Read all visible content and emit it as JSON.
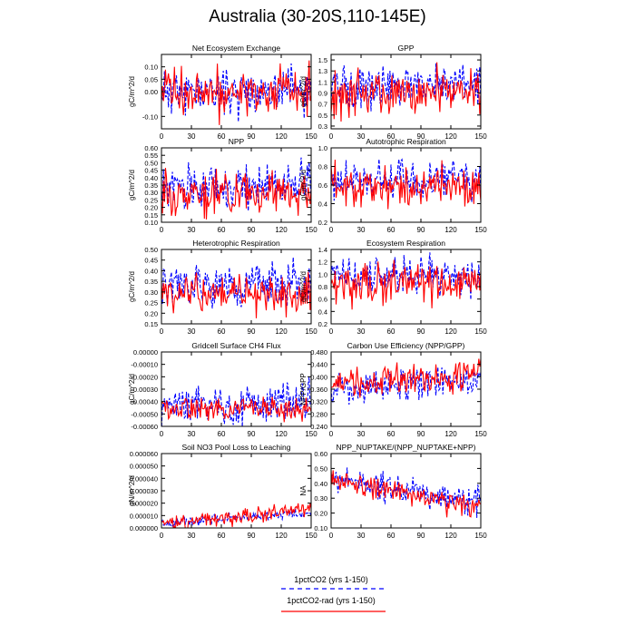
{
  "title": "Australia (30-20S,110-145E)",
  "legend": [
    {
      "label": "1pctCO2 (yrs 1-150)",
      "color": "#0000ff",
      "dash": "5,4"
    },
    {
      "label": "1pctCO2-rad (yrs 1-150)",
      "color": "#ff0000",
      "dash": ""
    }
  ],
  "chart_data": [
    {
      "type": "line",
      "title": "Net Ecosystem Exchange",
      "ylabel": "gC/m^2/d",
      "xlim": [
        0,
        150
      ],
      "ylim": [
        -0.15,
        0.15
      ],
      "xticks": [
        0,
        30,
        60,
        90,
        120,
        150
      ],
      "yticks": [
        -0.1,
        0.0,
        0.05,
        0.1
      ],
      "ytick_labels": [
        "-0.10",
        "0.00",
        "0.05",
        "0.10"
      ],
      "series": [
        {
          "color": "#0000ff",
          "base": 0.0,
          "amp": 0.045,
          "trend": 0.0,
          "seed": 11
        },
        {
          "color": "#ff0000",
          "base": 0.0,
          "amp": 0.05,
          "trend": 0.0,
          "seed": 12
        }
      ]
    },
    {
      "type": "line",
      "title": "GPP",
      "ylabel": "gC/m^2/d",
      "xlim": [
        0,
        150
      ],
      "ylim": [
        0.25,
        1.6
      ],
      "xticks": [
        0,
        30,
        60,
        90,
        120,
        150
      ],
      "yticks": [
        0.3,
        0.5,
        0.7,
        0.9,
        1.1,
        1.3,
        1.5
      ],
      "ytick_labels": [
        "0.3",
        "0.5",
        "0.7",
        "0.9",
        "1.1",
        "1.3",
        "1.5"
      ],
      "series": [
        {
          "color": "#0000ff",
          "base": 1.0,
          "amp": 0.18,
          "trend": 0.05,
          "seed": 21
        },
        {
          "color": "#ff0000",
          "base": 0.9,
          "amp": 0.2,
          "trend": 0.0,
          "seed": 22
        }
      ]
    },
    {
      "type": "line",
      "title": "NPP",
      "ylabel": "gC/m^2/d",
      "xlim": [
        0,
        150
      ],
      "ylim": [
        0.1,
        0.6
      ],
      "xticks": [
        0,
        30,
        60,
        90,
        120,
        150
      ],
      "yticks": [
        0.1,
        0.15,
        0.2,
        0.25,
        0.3,
        0.35,
        0.4,
        0.45,
        0.5,
        0.55,
        0.6
      ],
      "ytick_labels": [
        "0.10",
        "0.15",
        "0.20",
        "0.25",
        "0.30",
        "0.35",
        "0.40",
        "0.45",
        "0.50",
        "0.55",
        "0.60"
      ],
      "series": [
        {
          "color": "#0000ff",
          "base": 0.33,
          "amp": 0.07,
          "trend": 0.02,
          "seed": 31
        },
        {
          "color": "#ff0000",
          "base": 0.3,
          "amp": 0.07,
          "trend": 0.0,
          "seed": 32
        }
      ]
    },
    {
      "type": "line",
      "title": "Autotrophic Respiration",
      "ylabel": "gC/m^2/d",
      "xlim": [
        0,
        150
      ],
      "ylim": [
        0.2,
        1.0
      ],
      "xticks": [
        0,
        30,
        60,
        90,
        120,
        150
      ],
      "yticks": [
        0.2,
        0.4,
        0.6,
        0.8,
        1.0
      ],
      "ytick_labels": [
        "0.2",
        "0.4",
        "0.6",
        "0.8",
        "1.0"
      ],
      "series": [
        {
          "color": "#0000ff",
          "base": 0.63,
          "amp": 0.11,
          "trend": 0.02,
          "seed": 41
        },
        {
          "color": "#ff0000",
          "base": 0.58,
          "amp": 0.11,
          "trend": 0.0,
          "seed": 42
        }
      ]
    },
    {
      "type": "line",
      "title": "Heterotrophic Respiration",
      "ylabel": "gC/m^2/d",
      "xlim": [
        0,
        150
      ],
      "ylim": [
        0.15,
        0.5
      ],
      "xticks": [
        0,
        30,
        60,
        90,
        120,
        150
      ],
      "yticks": [
        0.15,
        0.2,
        0.25,
        0.3,
        0.35,
        0.4,
        0.45,
        0.5
      ],
      "ytick_labels": [
        "0.15",
        "0.20",
        "0.25",
        "0.30",
        "0.35",
        "0.40",
        "0.45",
        "0.50"
      ],
      "series": [
        {
          "color": "#0000ff",
          "base": 0.32,
          "amp": 0.05,
          "trend": 0.02,
          "seed": 51
        },
        {
          "color": "#ff0000",
          "base": 0.29,
          "amp": 0.05,
          "trend": 0.0,
          "seed": 52
        }
      ]
    },
    {
      "type": "line",
      "title": "Ecosystem Respiration",
      "ylabel": "gC/m^2/d",
      "xlim": [
        0,
        150
      ],
      "ylim": [
        0.2,
        1.4
      ],
      "xticks": [
        0,
        30,
        60,
        90,
        120,
        150
      ],
      "yticks": [
        0.2,
        0.4,
        0.6,
        0.8,
        1.0,
        1.2,
        1.4
      ],
      "ytick_labels": [
        "0.2",
        "0.4",
        "0.6",
        "0.8",
        "1.0",
        "1.2",
        "1.4"
      ],
      "series": [
        {
          "color": "#0000ff",
          "base": 0.95,
          "amp": 0.15,
          "trend": 0.04,
          "seed": 61
        },
        {
          "color": "#ff0000",
          "base": 0.85,
          "amp": 0.16,
          "trend": 0.0,
          "seed": 62
        }
      ]
    },
    {
      "type": "line",
      "title": "Gridcell Surface CH4 Flux",
      "ylabel": "gC/m^2/d",
      "xlim": [
        0,
        150
      ],
      "ylim": [
        -0.0006,
        0.0
      ],
      "xticks": [
        0,
        30,
        60,
        90,
        120,
        150
      ],
      "yticks": [
        -0.0006,
        -0.0005,
        -0.0004,
        -0.0003,
        -0.0002,
        -0.0001,
        0.0
      ],
      "ytick_labels": [
        "-0.00060",
        "-0.00050",
        "-0.00040",
        "-0.00030",
        "-0.00020",
        "-0.00010",
        "0.00000"
      ],
      "series": [
        {
          "color": "#0000ff",
          "base": -0.00042,
          "amp": 8e-05,
          "trend": 0.0,
          "seed": 71
        },
        {
          "color": "#ff0000",
          "base": -0.00046,
          "amp": 5e-05,
          "trend": 0.0,
          "seed": 72
        }
      ]
    },
    {
      "type": "line",
      "title": "Carbon Use Efficiency (NPP/GPP)",
      "ylabel": "NPP/GPP",
      "xlim": [
        0,
        150
      ],
      "ylim": [
        0.24,
        0.48
      ],
      "xticks": [
        0,
        30,
        60,
        90,
        120,
        150
      ],
      "yticks": [
        0.24,
        0.28,
        0.32,
        0.36,
        0.4,
        0.44,
        0.48
      ],
      "ytick_labels": [
        "0.240",
        "0.280",
        "0.320",
        "0.360",
        "0.400",
        "0.440",
        "0.480"
      ],
      "series": [
        {
          "color": "#0000ff",
          "base": 0.36,
          "amp": 0.03,
          "trend": 0.03,
          "seed": 81
        },
        {
          "color": "#ff0000",
          "base": 0.37,
          "amp": 0.025,
          "trend": 0.04,
          "seed": 82
        }
      ]
    },
    {
      "type": "line",
      "title": "Soil NO3 Pool Loss to Leaching",
      "ylabel": "gN/m^2/d",
      "xlim": [
        0,
        150
      ],
      "ylim": [
        0.0,
        6e-05
      ],
      "xticks": [
        0,
        30,
        60,
        90,
        120,
        150
      ],
      "yticks": [
        0.0,
        1e-05,
        2e-05,
        3e-05,
        4e-05,
        5e-05,
        6e-05
      ],
      "ytick_labels": [
        "0.000000",
        "0.000010",
        "0.000020",
        "0.000030",
        "0.000040",
        "0.000050",
        "0.000060"
      ],
      "series": [
        {
          "color": "#0000ff",
          "base": 3e-06,
          "amp": 2e-06,
          "trend": 1e-05,
          "seed": 91
        },
        {
          "color": "#ff0000",
          "base": 3e-06,
          "amp": 3e-06,
          "trend": 1.2e-05,
          "seed": 92
        }
      ]
    },
    {
      "type": "line",
      "title": "NPP_NUPTAKE/(NPP_NUPTAKE+NPP)",
      "ylabel": "NA",
      "xlim": [
        0,
        150
      ],
      "ylim": [
        0.1,
        0.6
      ],
      "xticks": [
        0,
        30,
        60,
        90,
        120,
        150
      ],
      "yticks": [
        0.1,
        0.2,
        0.3,
        0.4,
        0.5,
        0.6
      ],
      "ytick_labels": [
        "0.10",
        "0.20",
        "0.30",
        "0.40",
        "0.50",
        "0.60"
      ],
      "series": [
        {
          "color": "#0000ff",
          "base": 0.44,
          "amp": 0.05,
          "trend": -0.17,
          "seed": 101
        },
        {
          "color": "#ff0000",
          "base": 0.42,
          "amp": 0.04,
          "trend": -0.18,
          "seed": 102
        }
      ]
    }
  ]
}
